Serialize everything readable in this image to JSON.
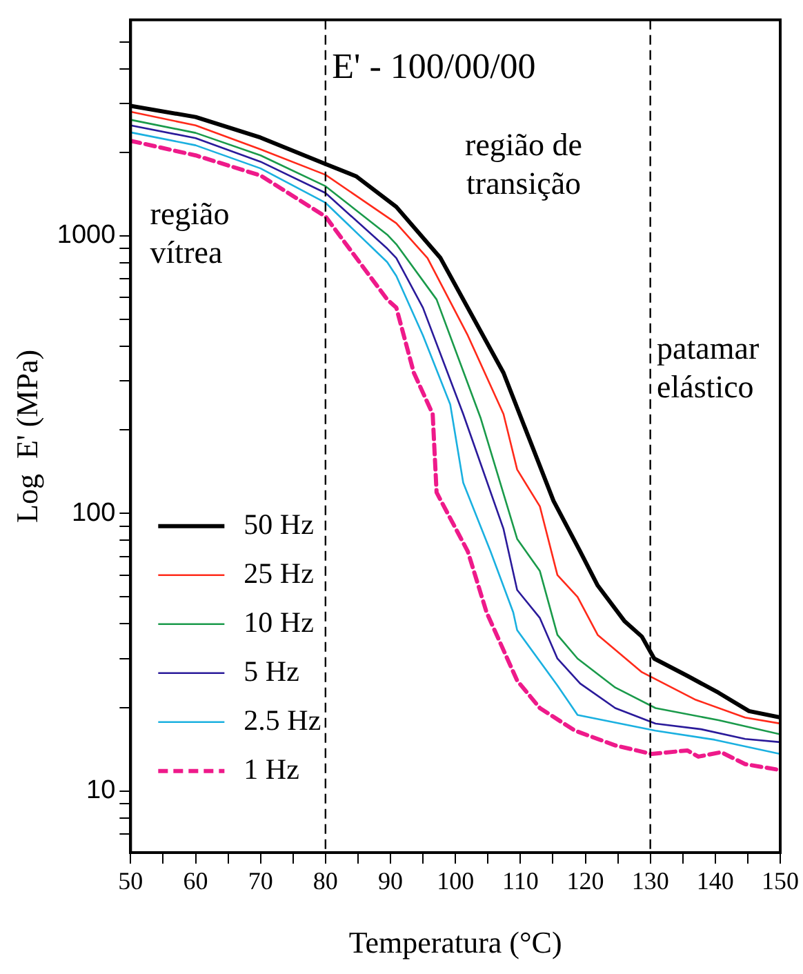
{
  "chart_data": {
    "type": "line",
    "title": "E' - 100/00/00",
    "xlabel": "Temperatura (°C)",
    "ylabel": "Log  E' (MPa)",
    "xlim": [
      50,
      150
    ],
    "xticks": [
      50,
      {
        "value": 55,
        "label": null
      },
      60,
      {
        "value": 65,
        "label": null
      },
      70,
      {
        "value": 75,
        "label": null
      },
      80,
      {
        "value": 85,
        "label": null
      },
      90,
      {
        "value": 95,
        "label": null
      },
      100,
      {
        "value": 105,
        "label": null
      },
      110,
      {
        "value": 115,
        "label": null
      },
      120,
      {
        "value": 125,
        "label": null
      },
      130,
      {
        "value": 135,
        "label": null
      },
      140,
      {
        "value": 145,
        "label": null
      },
      150
    ],
    "ylim": [
      6,
      6000
    ],
    "log": "y",
    "yticks": [
      {
        "value": 7,
        "label": null
      },
      {
        "value": 8,
        "label": null
      },
      {
        "value": 9,
        "label": null
      },
      10,
      {
        "value": 20,
        "label": null
      },
      {
        "value": 30,
        "label": null
      },
      {
        "value": 40,
        "label": null
      },
      {
        "value": 50,
        "label": null
      },
      {
        "value": 60,
        "label": null
      },
      {
        "value": 70,
        "label": null
      },
      {
        "value": 80,
        "label": null
      },
      {
        "value": 90,
        "label": null
      },
      100,
      {
        "value": 200,
        "label": null
      },
      {
        "value": 300,
        "label": null
      },
      {
        "value": 400,
        "label": null
      },
      {
        "value": 500,
        "label": null
      },
      {
        "value": 600,
        "label": null
      },
      {
        "value": 700,
        "label": null
      },
      {
        "value": 800,
        "label": null
      },
      {
        "value": 900,
        "label": null
      },
      1000,
      {
        "value": 2000,
        "label": null
      },
      {
        "value": 3000,
        "label": null
      },
      {
        "value": 4000,
        "label": null
      },
      {
        "value": 5000,
        "label": null
      }
    ],
    "grid": false,
    "legend": "bottom left",
    "marker": "none",
    "ref_lines": [
      {
        "axis": "x",
        "value": 80,
        "line_style": "dashed",
        "color": "#000000"
      },
      {
        "axis": "x",
        "value": 130,
        "line_style": "dashed",
        "color": "#000000"
      }
    ],
    "annotations": [
      "região vítrea",
      "região de transição",
      "patamar elástico"
    ],
    "series": [
      {
        "name": "50 Hz",
        "color": "#000000",
        "line_style": "solid",
        "x": [
          50,
          60,
          70,
          80,
          84.7,
          90.9,
          97.7,
          107.4,
          115.1,
          119.2,
          121.9,
          126,
          128.7,
          130.6,
          135.7,
          140.5,
          145.2,
          150
        ],
        "values": [
          2940,
          2680,
          2260,
          1815,
          1640,
          1272,
          832,
          321,
          111,
          73,
          55,
          41,
          36,
          30,
          26,
          22.6,
          19.4,
          18.4
        ]
      },
      {
        "name": "25 Hz",
        "color": "#ff2a1a",
        "line_style": "solid",
        "x": [
          50,
          60,
          70,
          80,
          90.9,
          95.7,
          101.9,
          107.4,
          109.5,
          113,
          115.7,
          118.8,
          121.9,
          128.7,
          137,
          144.6,
          150
        ],
        "values": [
          2800,
          2500,
          2050,
          1660,
          1110,
          832,
          438,
          228,
          144,
          106,
          60,
          50,
          36.5,
          26.8,
          21.3,
          18.4,
          17.5
        ]
      },
      {
        "name": "10 Hz",
        "color": "#1a9a4a",
        "line_style": "solid",
        "x": [
          50,
          60,
          70,
          80,
          89.5,
          90.9,
          97.1,
          103.9,
          109.5,
          113,
          115.7,
          118.8,
          124.6,
          130.8,
          140.5,
          150
        ],
        "values": [
          2620,
          2350,
          1950,
          1510,
          1010,
          933,
          590,
          220,
          81,
          62,
          36.5,
          30,
          23.6,
          19.9,
          18,
          16
        ]
      },
      {
        "name": "5 Hz",
        "color": "#2a1a9a",
        "line_style": "solid",
        "x": [
          50,
          60,
          70,
          80,
          89.5,
          90.9,
          95,
          101.2,
          107.4,
          109.5,
          113,
          115.7,
          119.2,
          124.6,
          130.8,
          137.8,
          144.6,
          150
        ],
        "values": [
          2500,
          2250,
          1850,
          1427,
          900,
          832,
          551,
          228,
          88,
          53,
          42,
          30,
          24.4,
          19.9,
          17.5,
          16.7,
          15.4,
          15
        ]
      },
      {
        "name": "2.5 Hz",
        "color": "#1ab0e0",
        "line_style": "solid",
        "x": [
          50,
          60,
          70,
          80,
          89.5,
          90.9,
          95,
          99.2,
          101.2,
          105.4,
          108.9,
          109.5,
          115.7,
          118.8,
          130.8,
          139.9,
          150
        ],
        "values": [
          2360,
          2120,
          1750,
          1316,
          804,
          717,
          438,
          247,
          129,
          73,
          44,
          38,
          24,
          18.8,
          16.5,
          15.3,
          13.6
        ]
      },
      {
        "name": "1 Hz",
        "color": "#ee1a8a",
        "line_style": "dashed",
        "x": [
          50,
          60,
          70,
          80,
          89.5,
          90.9,
          93.6,
          96.5,
          97.1,
          101.9,
          104.8,
          109.5,
          113,
          118.4,
          124.6,
          130.2,
          135.7,
          137.4,
          140.9,
          144.6,
          150
        ],
        "values": [
          2200,
          1950,
          1650,
          1174,
          590,
          551,
          321,
          228,
          119,
          73,
          44,
          25,
          19.9,
          16.5,
          14.6,
          13.6,
          14,
          13.3,
          13.8,
          12.5,
          11.9
        ]
      }
    ]
  }
}
